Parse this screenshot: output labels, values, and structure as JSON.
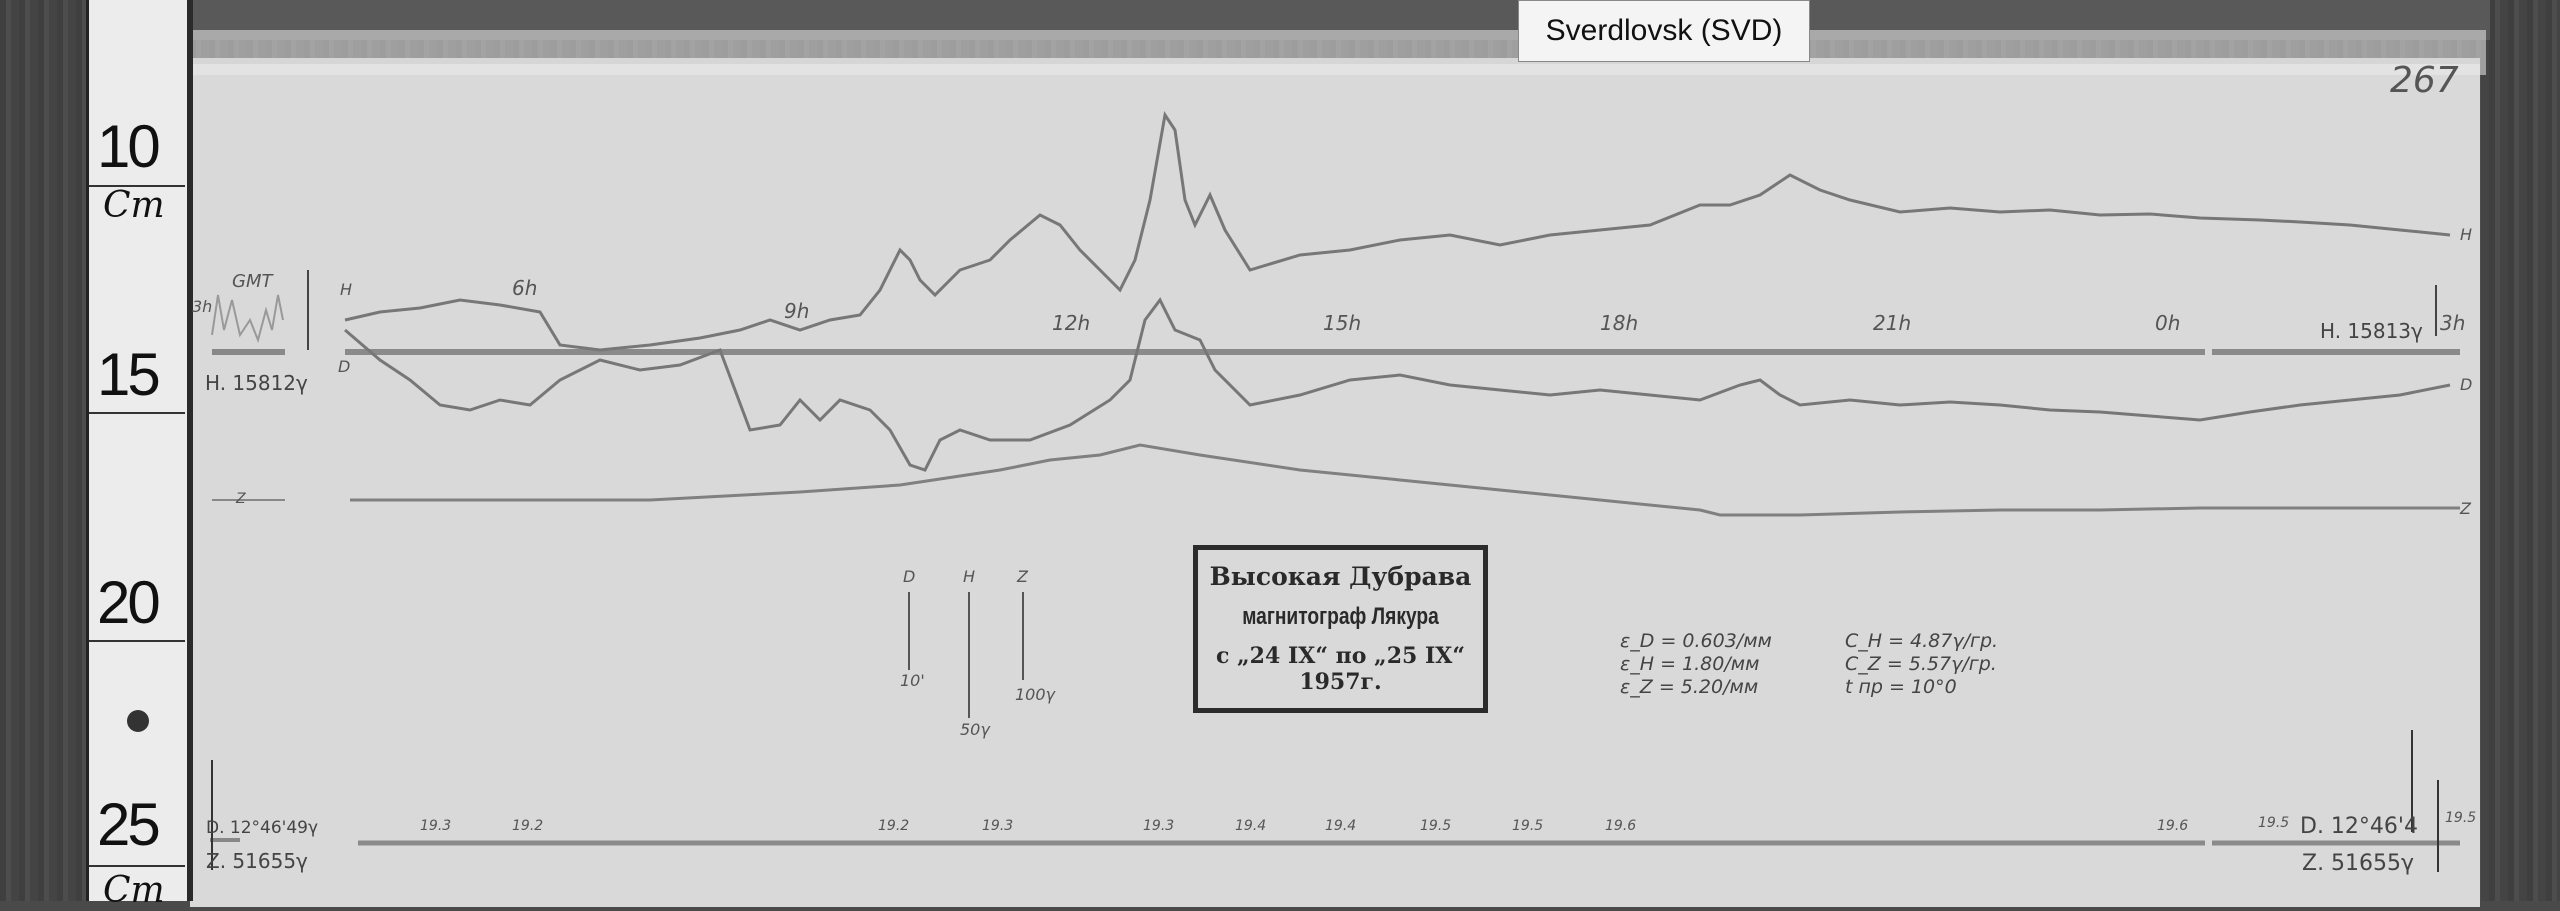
{
  "label": "Sverdlovsk (SVD)",
  "page_number": "267",
  "ruler": {
    "marks": [
      "10",
      "Cm",
      "15",
      "20",
      "25",
      "Cm"
    ]
  },
  "traces": {
    "h_label": "H",
    "d_label": "D",
    "z_label": "Z"
  },
  "time_labels": [
    "6h",
    "9h",
    "12h",
    "15h",
    "18h",
    "21h",
    "0h",
    "3h"
  ],
  "gmt_label": "GMT",
  "gmt_mark": "3h",
  "baseline_left": {
    "h": "H. 15812γ",
    "d": "D. 12°46'49γ",
    "z": "Z. 51655γ"
  },
  "baseline_right": {
    "h": "H. 15813γ",
    "d": "D. 12°46'4",
    "z": "Z. 51655γ"
  },
  "temperatures": [
    "19.3",
    "19.2",
    "19.2",
    "19.3",
    "19.3",
    "19.4",
    "19.4",
    "19.5",
    "19.5",
    "19.6",
    "19.6",
    "19.5",
    "19.5"
  ],
  "scale_bars": [
    {
      "name": "D",
      "value": "10'"
    },
    {
      "name": "H",
      "value": "50γ"
    },
    {
      "name": "Z",
      "value": "100γ"
    }
  ],
  "stamp": {
    "line1": "Высокая Дубрава",
    "line2": "магнитограф Лякура",
    "line3": "с „24 IX“ по „25 IX“ 1957г."
  },
  "constants": {
    "eps_d": "ε_D = 0.603/мм",
    "eps_h": "ε_H = 1.80/мм",
    "eps_z": "ε_Z = 5.20/мм",
    "c_h": "C_H = 4.87γ/гр.",
    "c_z": "C_Z = 5.57γ/гр.",
    "t": "t пр = 10°0"
  }
}
